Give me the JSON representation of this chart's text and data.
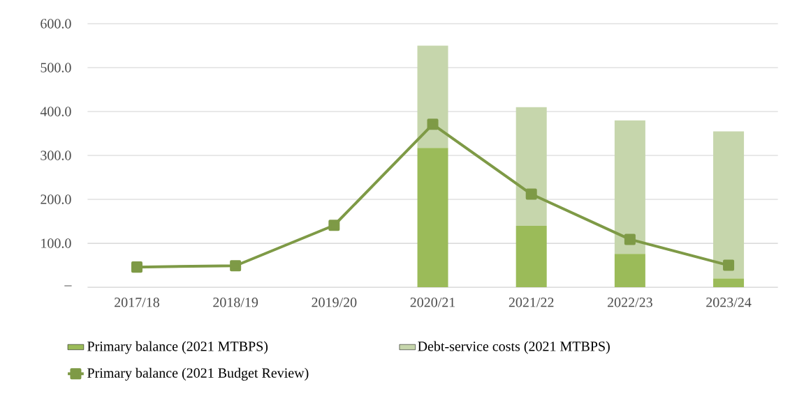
{
  "chart_data": {
    "type": "bar",
    "stacked": true,
    "categories": [
      "2017/18",
      "2018/19",
      "2019/20",
      "2020/21",
      "2021/22",
      "2022/23",
      "2023/24"
    ],
    "series": [
      {
        "name": "Primary balance (2021 MTBPS)",
        "color": "#9bbb59",
        "values": [
          null,
          null,
          null,
          317,
          140,
          76,
          20
        ]
      },
      {
        "name": "Debt-service costs (2021 MTBPS)",
        "color": "#c6d6ac",
        "values": [
          null,
          null,
          null,
          233,
          270,
          304,
          335
        ]
      },
      {
        "name": "Primary balance (2021 Budget Review)",
        "type": "line",
        "marker": "square",
        "color": "#7e9a46",
        "values": [
          46,
          49,
          141,
          371,
          212,
          109,
          50
        ]
      }
    ],
    "ylim": [
      0,
      600
    ],
    "yticks": [
      {
        "value": 0,
        "label": "–"
      },
      {
        "value": 100,
        "label": "100.0"
      },
      {
        "value": 200,
        "label": "200.0"
      },
      {
        "value": 300,
        "label": "300.0"
      },
      {
        "value": 400,
        "label": "400.0"
      },
      {
        "value": 500,
        "label": "500.0"
      },
      {
        "value": 600,
        "label": "600.0"
      }
    ],
    "grid": "y",
    "legend": "bottom"
  }
}
